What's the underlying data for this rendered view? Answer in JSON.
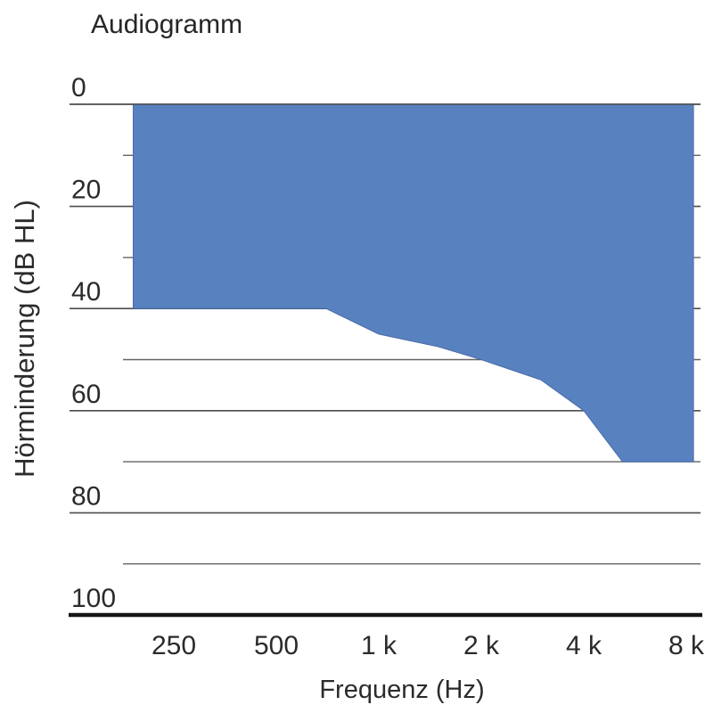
{
  "chart_data": {
    "type": "area",
    "title": "Audiogramm",
    "xlabel": "Frequenz (Hz)",
    "ylabel": "Hörminderung (dB HL)",
    "x_scale": "log2-frequency",
    "y_axis_inverted": true,
    "ylim": [
      0,
      100
    ],
    "x_ticks": [
      {
        "freq_hz": 250,
        "label": "250"
      },
      {
        "freq_hz": 500,
        "label": "500"
      },
      {
        "freq_hz": 1000,
        "label": "1 k"
      },
      {
        "freq_hz": 2000,
        "label": "2 k"
      },
      {
        "freq_hz": 4000,
        "label": "4 k"
      },
      {
        "freq_hz": 8000,
        "label": "8 k"
      }
    ],
    "y_ticks_major": [
      {
        "db": 0,
        "label": "0"
      },
      {
        "db": 20,
        "label": "20"
      },
      {
        "db": 40,
        "label": "40"
      },
      {
        "db": 60,
        "label": "60"
      },
      {
        "db": 80,
        "label": "80"
      },
      {
        "db": 100,
        "label": "100"
      }
    ],
    "y_ticks_minor_db": [
      10,
      30,
      50,
      70,
      90
    ],
    "area": {
      "fill_from_db": 0,
      "points_hz_db": [
        [
          190,
          40
        ],
        [
          700,
          40
        ],
        [
          1000,
          45
        ],
        [
          1500,
          47.5
        ],
        [
          2000,
          50
        ],
        [
          3000,
          54
        ],
        [
          4000,
          60
        ],
        [
          5200,
          70
        ],
        [
          8400,
          70
        ]
      ]
    },
    "colors": {
      "area_fill": "#5881c0",
      "area_edge": "#4a6aa8",
      "grid_major": "#4d4d4d",
      "grid_minor": "#646464",
      "axis_line": "#161616",
      "text": "#2b2b2b"
    }
  }
}
